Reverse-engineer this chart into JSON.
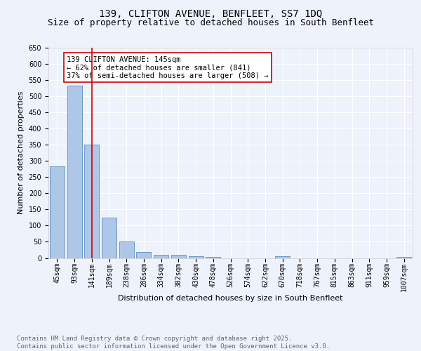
{
  "title1": "139, CLIFTON AVENUE, BENFLEET, SS7 1DQ",
  "title2": "Size of property relative to detached houses in South Benfleet",
  "xlabel": "Distribution of detached houses by size in South Benfleet",
  "ylabel": "Number of detached properties",
  "categories": [
    "45sqm",
    "93sqm",
    "141sqm",
    "189sqm",
    "238sqm",
    "286sqm",
    "334sqm",
    "382sqm",
    "430sqm",
    "478sqm",
    "526sqm",
    "574sqm",
    "622sqm",
    "670sqm",
    "718sqm",
    "767sqm",
    "815sqm",
    "863sqm",
    "911sqm",
    "959sqm",
    "1007sqm"
  ],
  "values": [
    283,
    533,
    350,
    125,
    50,
    18,
    10,
    10,
    5,
    3,
    0,
    0,
    0,
    5,
    0,
    0,
    0,
    0,
    0,
    0,
    3
  ],
  "bar_color": "#aec6e8",
  "bar_edge_color": "#5a8fc2",
  "vline_x": 2,
  "vline_color": "#cc0000",
  "annotation_text": "139 CLIFTON AVENUE: 145sqm\n← 62% of detached houses are smaller (841)\n37% of semi-detached houses are larger (508) →",
  "annotation_box_color": "#ffffff",
  "annotation_box_edge": "#cc0000",
  "ylim": [
    0,
    650
  ],
  "yticks": [
    0,
    50,
    100,
    150,
    200,
    250,
    300,
    350,
    400,
    450,
    500,
    550,
    600,
    650
  ],
  "background_color": "#eef2fb",
  "grid_color": "#ffffff",
  "footer_text": "Contains HM Land Registry data © Crown copyright and database right 2025.\nContains public sector information licensed under the Open Government Licence v3.0.",
  "title_fontsize": 10,
  "subtitle_fontsize": 9,
  "axis_label_fontsize": 8,
  "tick_fontsize": 7,
  "annotation_fontsize": 7.5,
  "footer_fontsize": 6.5
}
